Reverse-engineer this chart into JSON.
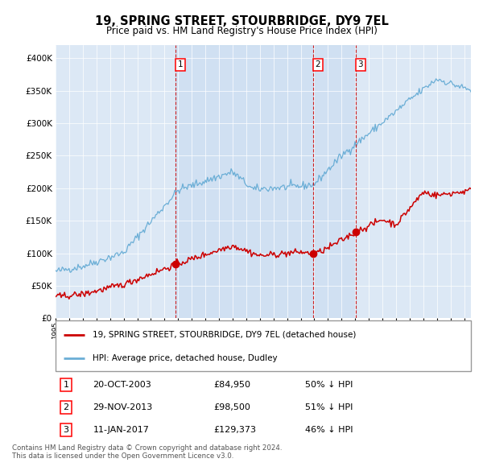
{
  "title": "19, SPRING STREET, STOURBRIDGE, DY9 7EL",
  "subtitle": "Price paid vs. HM Land Registry's House Price Index (HPI)",
  "legend_line1": "19, SPRING STREET, STOURBRIDGE, DY9 7EL (detached house)",
  "legend_line2": "HPI: Average price, detached house, Dudley",
  "transactions": [
    {
      "num": 1,
      "date": "20-OCT-2003",
      "price": 84950,
      "pct": "50%",
      "dir": "↓",
      "x_year": 2003.8
    },
    {
      "num": 2,
      "date": "29-NOV-2013",
      "price": 98500,
      "pct": "51%",
      "dir": "↓",
      "x_year": 2013.9
    },
    {
      "num": 3,
      "date": "11-JAN-2017",
      "price": 129373,
      "pct": "46%",
      "dir": "↓",
      "x_year": 2017.05
    }
  ],
  "footnote1": "Contains HM Land Registry data © Crown copyright and database right 2024.",
  "footnote2": "This data is licensed under the Open Government Licence v3.0.",
  "hpi_color": "#6baed6",
  "hpi_fill": "#ddeeff",
  "price_color": "#cc0000",
  "marker_color": "#cc0000",
  "vline_color": "#cc0000",
  "background_color": "#dce8f5",
  "ylim": [
    0,
    420000
  ],
  "xlim_start": 1995.0,
  "xlim_end": 2025.5,
  "yticks": [
    0,
    50000,
    100000,
    150000,
    200000,
    250000,
    300000,
    350000,
    400000
  ]
}
